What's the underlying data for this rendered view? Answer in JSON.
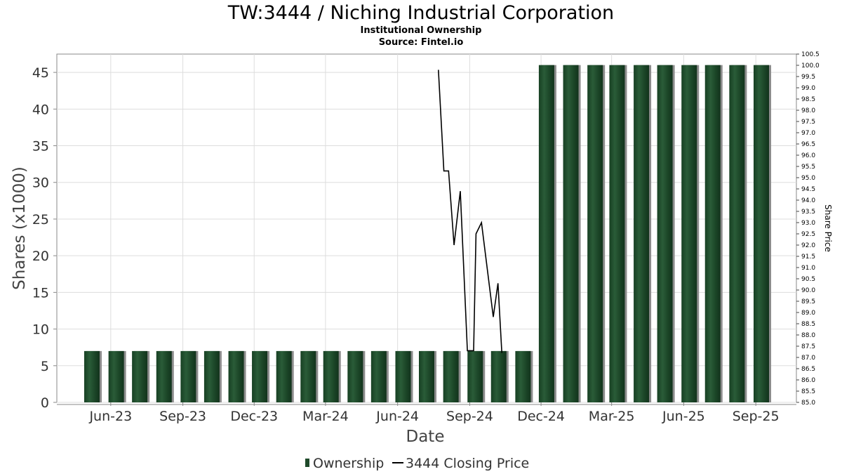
{
  "chart_data": {
    "type": "bar",
    "title": "TW:3444 / Niching Industrial Corporation",
    "subtitle": "Institutional Ownership",
    "source": "Source: Fintel.io",
    "xlabel": "Date",
    "ylabel": "Shares (x1000)",
    "y2label": "Share Price",
    "ylim": [
      0,
      47.5
    ],
    "y2lim": [
      85.0,
      100.5
    ],
    "yticks": [
      0,
      5,
      10,
      15,
      20,
      25,
      30,
      35,
      40,
      45
    ],
    "y2ticks": [
      "85.0",
      "85.5",
      "86.0",
      "86.5",
      "87.0",
      "87.5",
      "88.0",
      "88.5",
      "89.0",
      "89.5",
      "90.0",
      "90.5",
      "91.0",
      "91.5",
      "92.0",
      "92.5",
      "93.0",
      "93.5",
      "94.0",
      "94.5",
      "95.0",
      "95.5",
      "96.0",
      "96.5",
      "97.0",
      "97.5",
      "98.0",
      "98.5",
      "99.0",
      "99.5",
      "100.0",
      "100.5"
    ],
    "xticks": [
      "Jun-23",
      "Sep-23",
      "Dec-23",
      "Mar-24",
      "Jun-24",
      "Sep-24",
      "Dec-24",
      "Mar-25",
      "Jun-25",
      "Sep-25"
    ],
    "grid": true,
    "legend_position": "bottom",
    "series": [
      {
        "name": "Ownership",
        "color": "#1f4a2a",
        "x": [
          "2023-05-08",
          "2023-06-08",
          "2023-07-08",
          "2023-08-08",
          "2023-09-08",
          "2023-10-08",
          "2023-11-08",
          "2023-12-08",
          "2024-01-08",
          "2024-02-08",
          "2024-03-08",
          "2024-04-08",
          "2024-05-08",
          "2024-06-08",
          "2024-07-08",
          "2024-08-08",
          "2024-09-08",
          "2024-10-08",
          "2024-11-08",
          "2024-12-08",
          "2025-01-08",
          "2025-02-08",
          "2025-03-08",
          "2025-04-08",
          "2025-05-08",
          "2025-06-08",
          "2025-07-08",
          "2025-08-08",
          "2025-09-08"
        ],
        "values": [
          7,
          7,
          7,
          7,
          7,
          7,
          7,
          7,
          7,
          7,
          7,
          7,
          7,
          7,
          7,
          7,
          7,
          7,
          7,
          46,
          46,
          46,
          46,
          46,
          46,
          46,
          46,
          46,
          46
        ]
      },
      {
        "name": "3444 Closing Price",
        "color": "#000000",
        "points": [
          [
            "2024-07-23",
            99.8
          ],
          [
            "2024-07-30",
            95.3
          ],
          [
            "2024-08-05",
            95.3
          ],
          [
            "2024-08-12",
            92.0
          ],
          [
            "2024-08-20",
            94.4
          ],
          [
            "2024-08-29",
            87.3
          ],
          [
            "2024-09-06",
            87.3
          ],
          [
            "2024-09-09",
            92.5
          ],
          [
            "2024-09-16",
            93.0
          ],
          [
            "2024-10-01",
            88.8
          ],
          [
            "2024-10-07",
            90.3
          ],
          [
            "2024-10-12",
            87.2
          ]
        ]
      }
    ]
  }
}
